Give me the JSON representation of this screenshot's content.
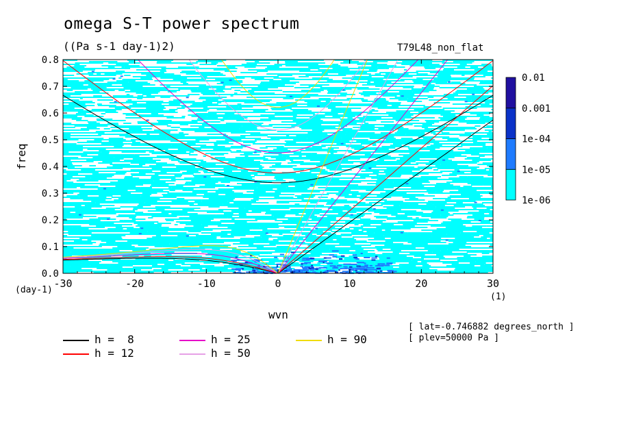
{
  "title": "omega S-T power spectrum",
  "units": "((Pa s-1 day-1)2)",
  "run_label": "T79L48_non_flat",
  "meta": {
    "lat": "[ lat=-0.746882 degrees_north ]",
    "plev": "[ plev=50000 Pa ]"
  },
  "chart_data": {
    "type": "heatmap",
    "title": "omega S-T power spectrum",
    "subtitle": "((Pa s-1 day-1)2)",
    "xlabel": "wvn",
    "ylabel": "freq",
    "x_unit": "(1)",
    "y_unit": "(day-1)",
    "xlim": [
      -30,
      30
    ],
    "ylim": [
      0,
      0.8
    ],
    "x_ticks": [
      -30,
      -20,
      -10,
      0,
      10,
      20,
      30
    ],
    "x_tick_labels": [
      "-30",
      "-20",
      "-10",
      "0",
      "10",
      "20",
      "30"
    ],
    "y_ticks": [
      0,
      0.1,
      0.2,
      0.3,
      0.4,
      0.5,
      0.6,
      0.7,
      0.8
    ],
    "y_tick_labels": [
      "0.0",
      "0.1",
      "0.2",
      "0.3",
      "0.4",
      "0.5",
      "0.6",
      "0.7",
      "0.8"
    ],
    "colorbar": {
      "levels": [
        "1e-06",
        "1e-05",
        "1e-04",
        "0.001",
        "0.01"
      ],
      "colors": [
        "#00ffff",
        "#1e7bff",
        "#0a32c8",
        "#2010a0",
        "#5a22b4"
      ]
    },
    "dispersion_curves": [
      {
        "h": 8,
        "label": "h =  8",
        "color": "#000000"
      },
      {
        "h": 12,
        "label": "h = 12",
        "color": "#ff0000"
      },
      {
        "h": 25,
        "label": "h = 25",
        "color": "#e600c8"
      },
      {
        "h": 50,
        "label": "h = 50",
        "color": "#e6a0e6"
      },
      {
        "h": 90,
        "label": "h = 90",
        "color": "#f0dc00"
      }
    ]
  }
}
